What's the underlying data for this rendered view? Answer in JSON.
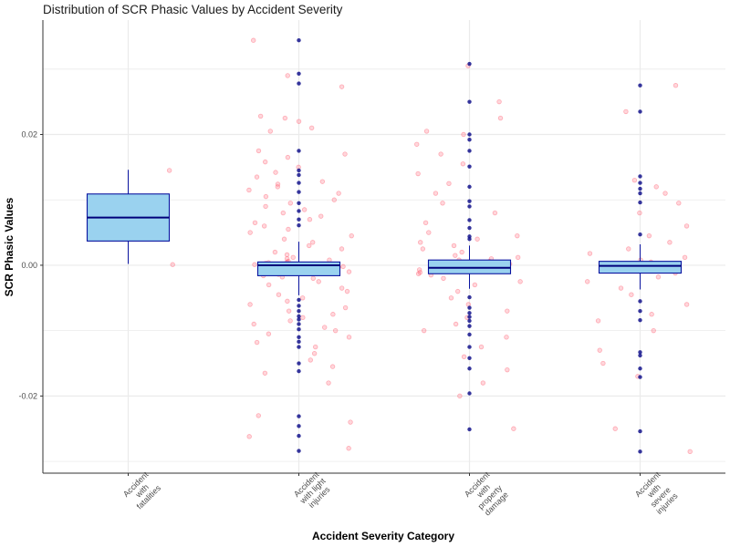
{
  "chart_data": {
    "type": "boxplot",
    "title": "Distribution of SCR Phasic Values by Accident Severity",
    "xlabel": "Accident Severity Category",
    "ylabel": "SCR Phasic Values",
    "ylim": [
      -0.0318,
      0.0375
    ],
    "y_ticks": [
      -0.02,
      0.0,
      0.02
    ],
    "y_tick_labels": [
      "-0.02",
      "0.00",
      "0.02"
    ],
    "grid": true,
    "categories": [
      {
        "lines": [
          "Accident",
          "with",
          "fatalities"
        ]
      },
      {
        "lines": [
          "Accident",
          "with light",
          "injuries"
        ]
      },
      {
        "lines": [
          "Accident",
          "with",
          "property",
          "damage"
        ]
      },
      {
        "lines": [
          "Accident",
          "with",
          "severe",
          "injuries"
        ]
      }
    ],
    "boxes": [
      {
        "q1": 0.0037,
        "median": 0.0073,
        "q3": 0.0109,
        "whisker_low": 0.0002,
        "whisker_high": 0.0146,
        "outliers": []
      },
      {
        "q1": -0.0016,
        "median": 0.0,
        "q3": 0.0005,
        "whisker_low": -0.0046,
        "whisker_high": 0.0036,
        "outliers": [
          0.0344,
          0.0293,
          0.0278,
          0.0175,
          0.0145,
          0.0138,
          0.0126,
          0.0112,
          0.0095,
          0.0083,
          0.007,
          0.0061,
          -0.0053,
          -0.0062,
          -0.007,
          -0.0078,
          -0.0083,
          -0.009,
          -0.0098,
          -0.011,
          -0.0117,
          -0.0125,
          -0.015,
          -0.0162,
          -0.0231,
          -0.0246,
          -0.0261,
          -0.0284
        ]
      },
      {
        "q1": -0.0013,
        "median": -0.0004,
        "q3": 0.0008,
        "whisker_low": -0.0036,
        "whisker_high": 0.003,
        "outliers": [
          0.0308,
          0.025,
          0.02,
          0.0192,
          0.0175,
          0.0151,
          0.012,
          0.0098,
          0.009,
          0.0069,
          0.0057,
          0.0044,
          0.004,
          -0.0049,
          -0.0065,
          -0.0073,
          -0.0079,
          -0.0085,
          -0.0093,
          -0.0106,
          -0.0125,
          -0.0142,
          -0.0158,
          -0.0196,
          -0.0251
        ]
      },
      {
        "q1": -0.0012,
        "median": -0.0001,
        "q3": 0.0006,
        "whisker_low": -0.0037,
        "whisker_high": 0.0032,
        "outliers": [
          0.0275,
          0.0235,
          0.0136,
          0.0126,
          0.0117,
          0.011,
          0.0096,
          0.0047,
          -0.0055,
          -0.007,
          -0.0084,
          -0.0133,
          -0.0138,
          -0.0158,
          -0.0171,
          -0.0254,
          -0.0285
        ]
      }
    ],
    "jitter_points": [
      [
        0.0145,
        0.0001
      ],
      [
        0.0344,
        0.029,
        0.0273,
        0.0228,
        0.0225,
        0.022,
        0.021,
        0.0205,
        0.0175,
        0.017,
        0.0165,
        0.0158,
        0.015,
        0.0142,
        0.0135,
        0.0128,
        0.0124,
        0.012,
        0.0115,
        0.011,
        0.0105,
        0.01,
        0.0095,
        0.009,
        0.0085,
        0.008,
        0.0075,
        0.007,
        0.0065,
        0.006,
        0.0055,
        0.005,
        0.0045,
        0.004,
        0.0035,
        0.003,
        0.0025,
        0.002,
        0.0016,
        0.0012,
        0.001,
        0.0008,
        0.0006,
        0.0005,
        0.0004,
        0.0003,
        0.0002,
        0.0001,
        0.0,
        0.0,
        -0.0001,
        -0.0002,
        -0.0003,
        -0.0004,
        -0.0005,
        -0.0006,
        -0.0008,
        -0.001,
        -0.0012,
        -0.0014,
        -0.0016,
        -0.0018,
        -0.002,
        -0.0025,
        -0.003,
        -0.0035,
        -0.004,
        -0.0045,
        -0.005,
        -0.0055,
        -0.006,
        -0.0065,
        -0.007,
        -0.0075,
        -0.008,
        -0.0085,
        -0.009,
        -0.0095,
        -0.01,
        -0.0105,
        -0.011,
        -0.0118,
        -0.0125,
        -0.0135,
        -0.0145,
        -0.0155,
        -0.0165,
        -0.018,
        -0.023,
        -0.024,
        -0.0262,
        -0.028
      ],
      [
        0.0305,
        0.025,
        0.0225,
        0.0205,
        0.02,
        0.0185,
        0.017,
        0.0155,
        0.014,
        0.0125,
        0.011,
        0.0095,
        0.008,
        0.0065,
        0.005,
        0.0045,
        0.004,
        0.0035,
        0.003,
        0.0025,
        0.002,
        0.0015,
        0.0012,
        0.001,
        0.0008,
        0.0006,
        0.0004,
        0.0002,
        0.0,
        -0.0001,
        -0.0003,
        -0.0005,
        -0.0007,
        -0.0009,
        -0.0011,
        -0.0013,
        -0.0015,
        -0.002,
        -0.0025,
        -0.003,
        -0.004,
        -0.005,
        -0.006,
        -0.007,
        -0.008,
        -0.009,
        -0.01,
        -0.011,
        -0.0125,
        -0.014,
        -0.016,
        -0.018,
        -0.02,
        -0.025
      ],
      [
        0.0275,
        0.0235,
        0.013,
        0.012,
        0.011,
        0.0095,
        0.008,
        0.006,
        0.0045,
        0.0035,
        0.0025,
        0.0018,
        0.0012,
        0.0008,
        0.0005,
        0.0002,
        0.0,
        -0.0002,
        -0.0005,
        -0.0008,
        -0.0012,
        -0.0018,
        -0.0025,
        -0.0035,
        -0.0045,
        -0.006,
        -0.0075,
        -0.0085,
        -0.01,
        -0.013,
        -0.015,
        -0.017,
        -0.025,
        -0.0285
      ]
    ],
    "colors": {
      "box_fill": "#9ad2ef",
      "box_border": "#0a14a0",
      "median": "#00007a",
      "outlier": "#13138c",
      "jitter": "#ff5a6e",
      "grid": "#ebebeb",
      "axis": "#333333"
    }
  }
}
